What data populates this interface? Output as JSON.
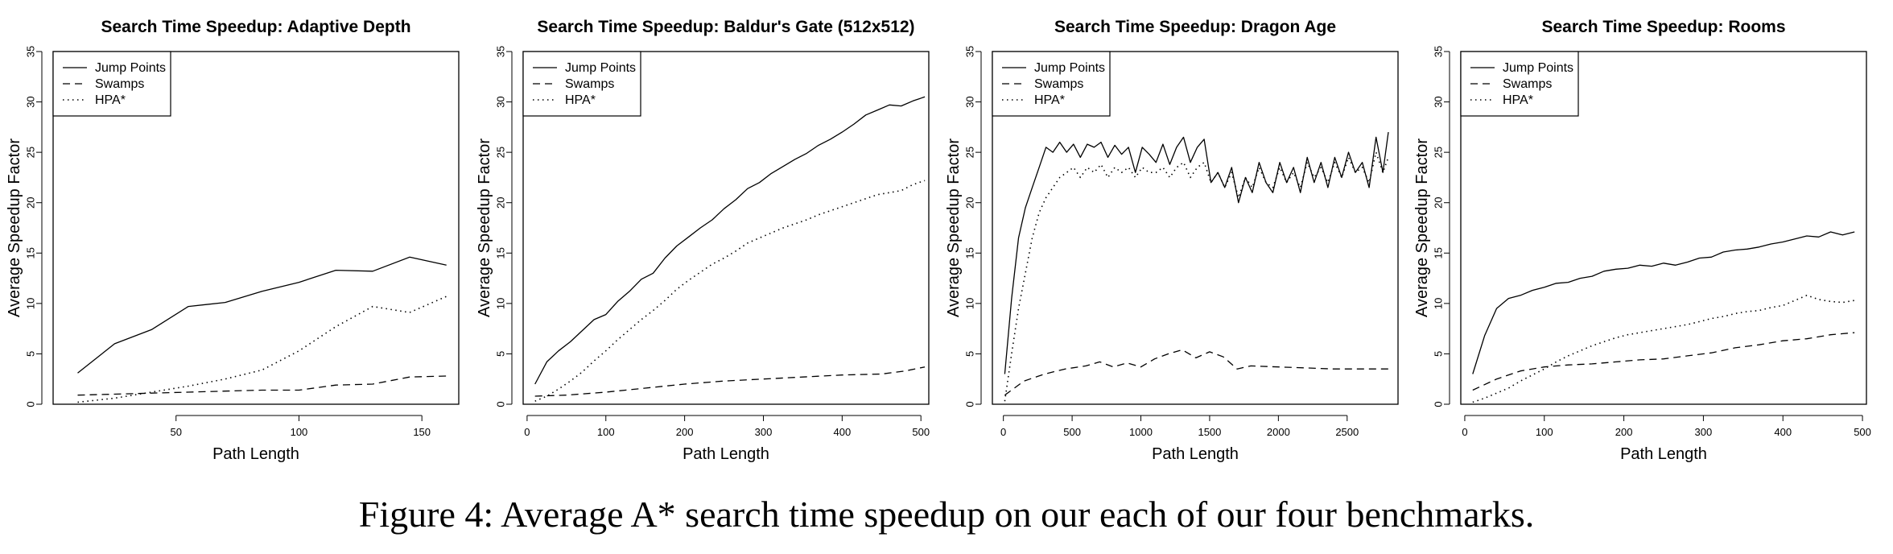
{
  "caption": "Figure 4: Average A* search time speedup on our each of our four benchmarks.",
  "chart_data": [
    {
      "type": "line",
      "title": "Search Time Speedup: Adaptive Depth",
      "xlabel": "Path Length",
      "ylabel": "Average Speedup Factor",
      "xlim": [
        0,
        165
      ],
      "ylim": [
        0,
        35
      ],
      "xticks": [
        50,
        100,
        150
      ],
      "yticks": [
        0,
        5,
        10,
        15,
        20,
        25,
        30,
        35
      ],
      "legend": "top-left",
      "grid": false,
      "series": [
        {
          "name": "Jump Points",
          "style": "solid",
          "x": [
            10,
            25,
            40,
            55,
            70,
            85,
            100,
            115,
            130,
            145,
            160
          ],
          "y": [
            3.1,
            6.0,
            7.4,
            9.7,
            10.1,
            11.2,
            12.1,
            13.3,
            13.2,
            14.6,
            13.8
          ]
        },
        {
          "name": "Swamps",
          "style": "dashed",
          "x": [
            10,
            25,
            40,
            55,
            70,
            85,
            100,
            115,
            130,
            145,
            160
          ],
          "y": [
            0.9,
            1.0,
            1.1,
            1.2,
            1.3,
            1.4,
            1.4,
            1.9,
            2.0,
            2.7,
            2.8
          ]
        },
        {
          "name": "HPA*",
          "style": "dotted",
          "x": [
            10,
            25,
            40,
            55,
            70,
            85,
            100,
            115,
            130,
            145,
            160
          ],
          "y": [
            0.2,
            0.6,
            1.2,
            1.8,
            2.5,
            3.4,
            5.3,
            7.7,
            9.7,
            9.1,
            10.7
          ]
        }
      ]
    },
    {
      "type": "line",
      "title": "Search Time Speedup: Baldur's Gate (512x512)",
      "xlabel": "Path Length",
      "ylabel": "Average Speedup Factor",
      "xlim": [
        -5,
        510
      ],
      "ylim": [
        0,
        35
      ],
      "xticks": [
        0,
        100,
        200,
        300,
        400,
        500
      ],
      "yticks": [
        0,
        5,
        10,
        15,
        20,
        25,
        30,
        35
      ],
      "legend": "top-left",
      "grid": false,
      "series": [
        {
          "name": "Jump Points",
          "style": "solid",
          "x": [
            10,
            25,
            40,
            55,
            70,
            85,
            100,
            115,
            130,
            145,
            160,
            175,
            190,
            205,
            220,
            235,
            250,
            265,
            280,
            295,
            310,
            325,
            340,
            355,
            370,
            385,
            400,
            415,
            430,
            445,
            460,
            475,
            490,
            505
          ],
          "y": [
            2.0,
            4.2,
            5.3,
            6.2,
            7.3,
            8.4,
            8.9,
            10.2,
            11.2,
            12.4,
            13.0,
            14.5,
            15.7,
            16.6,
            17.5,
            18.3,
            19.4,
            20.3,
            21.4,
            22.0,
            22.9,
            23.6,
            24.3,
            24.9,
            25.7,
            26.3,
            27.0,
            27.8,
            28.7,
            29.2,
            29.7,
            29.6,
            30.1,
            30.5
          ]
        },
        {
          "name": "Swamps",
          "style": "dashed",
          "x": [
            10,
            50,
            100,
            150,
            200,
            250,
            300,
            350,
            400,
            450,
            480,
            505
          ],
          "y": [
            0.8,
            0.9,
            1.2,
            1.6,
            2.0,
            2.3,
            2.5,
            2.7,
            2.9,
            3.0,
            3.3,
            3.7
          ]
        },
        {
          "name": "HPA*",
          "style": "dotted",
          "x": [
            10,
            25,
            40,
            55,
            70,
            85,
            100,
            115,
            130,
            145,
            160,
            175,
            190,
            205,
            220,
            235,
            250,
            265,
            280,
            295,
            310,
            325,
            340,
            355,
            370,
            385,
            400,
            415,
            430,
            445,
            460,
            475,
            490,
            505
          ],
          "y": [
            0.3,
            0.8,
            1.5,
            2.3,
            3.2,
            4.3,
            5.3,
            6.4,
            7.4,
            8.4,
            9.3,
            10.3,
            11.4,
            12.3,
            13.1,
            13.9,
            14.5,
            15.2,
            16.0,
            16.5,
            17.0,
            17.5,
            17.9,
            18.3,
            18.8,
            19.2,
            19.6,
            20.0,
            20.4,
            20.8,
            21.0,
            21.2,
            21.8,
            22.2
          ]
        }
      ]
    },
    {
      "type": "line",
      "title": "Search Time Speedup: Dragon Age",
      "xlabel": "Path Length",
      "ylabel": "Average Speedup Factor",
      "xlim": [
        -80,
        2870
      ],
      "ylim": [
        0,
        35
      ],
      "xticks": [
        0,
        500,
        1000,
        1500,
        2000,
        2500
      ],
      "yticks": [
        0,
        5,
        10,
        15,
        20,
        25,
        30,
        35
      ],
      "legend": "top-left",
      "grid": false,
      "series": [
        {
          "name": "Jump Points",
          "style": "solid",
          "x": [
            10,
            60,
            110,
            160,
            210,
            260,
            310,
            360,
            410,
            460,
            510,
            560,
            610,
            660,
            710,
            760,
            810,
            860,
            910,
            960,
            1010,
            1060,
            1110,
            1160,
            1210,
            1260,
            1310,
            1360,
            1410,
            1460,
            1510,
            1560,
            1610,
            1660,
            1710,
            1760,
            1810,
            1860,
            1910,
            1960,
            2010,
            2060,
            2110,
            2160,
            2210,
            2260,
            2310,
            2360,
            2410,
            2460,
            2510,
            2560,
            2610,
            2660,
            2710,
            2760,
            2800
          ],
          "y": [
            3.0,
            10.5,
            16.5,
            19.5,
            21.5,
            23.5,
            25.5,
            25.0,
            26.0,
            25.0,
            25.8,
            24.5,
            25.8,
            25.5,
            26.0,
            24.5,
            25.7,
            24.8,
            25.5,
            23.0,
            25.5,
            24.8,
            24.0,
            25.8,
            23.8,
            25.5,
            26.5,
            24.0,
            25.5,
            26.3,
            22.0,
            23.0,
            21.5,
            23.5,
            20.0,
            22.5,
            21.0,
            24.0,
            22.0,
            21.0,
            24.0,
            22.0,
            23.5,
            21.0,
            24.5,
            22.0,
            24.0,
            21.5,
            24.5,
            22.5,
            25.0,
            23.0,
            24.0,
            21.5,
            26.5,
            23.0,
            27.0
          ]
        },
        {
          "name": "Swamps",
          "style": "dashed",
          "x": [
            10,
            150,
            300,
            450,
            600,
            700,
            800,
            900,
            1000,
            1100,
            1200,
            1300,
            1400,
            1500,
            1600,
            1700,
            1800,
            2000,
            2200,
            2400,
            2600,
            2800
          ],
          "y": [
            0.9,
            2.3,
            3.0,
            3.5,
            3.8,
            4.2,
            3.7,
            4.1,
            3.7,
            4.5,
            5.0,
            5.4,
            4.6,
            5.2,
            4.7,
            3.5,
            3.8,
            3.7,
            3.6,
            3.5,
            3.5,
            3.5
          ]
        },
        {
          "name": "HPA*",
          "style": "dotted",
          "x": [
            10,
            60,
            110,
            160,
            210,
            260,
            310,
            360,
            410,
            460,
            510,
            560,
            610,
            660,
            710,
            760,
            810,
            860,
            910,
            960,
            1010,
            1060,
            1110,
            1160,
            1210,
            1260,
            1310,
            1360,
            1410,
            1460,
            1510,
            1560,
            1610,
            1660,
            1710,
            1760,
            1810,
            1860,
            1910,
            1960,
            2010,
            2060,
            2110,
            2160,
            2210,
            2260,
            2310,
            2360,
            2410,
            2460,
            2510,
            2560,
            2610,
            2660,
            2710,
            2760,
            2800
          ],
          "y": [
            0.3,
            5.0,
            9.5,
            13.0,
            16.5,
            19.0,
            20.5,
            21.5,
            22.5,
            23.0,
            23.5,
            22.5,
            23.5,
            23.0,
            23.8,
            22.5,
            23.5,
            23.0,
            23.5,
            22.5,
            23.5,
            23.0,
            23.0,
            23.5,
            22.5,
            23.5,
            24.0,
            22.5,
            23.5,
            24.0,
            22.0,
            23.0,
            21.5,
            23.0,
            20.5,
            22.5,
            21.5,
            23.5,
            22.0,
            21.5,
            23.5,
            22.0,
            23.0,
            21.5,
            24.0,
            22.5,
            23.5,
            22.0,
            24.0,
            22.5,
            24.5,
            23.0,
            23.5,
            22.0,
            25.0,
            23.0,
            24.5
          ]
        }
      ]
    },
    {
      "type": "line",
      "title": "Search Time Speedup: Rooms",
      "xlabel": "Path Length",
      "ylabel": "Average Speedup Factor",
      "xlim": [
        -5,
        505
      ],
      "ylim": [
        0,
        35
      ],
      "xticks": [
        0,
        100,
        200,
        300,
        400,
        500
      ],
      "yticks": [
        0,
        5,
        10,
        15,
        20,
        25,
        30,
        35
      ],
      "legend": "top-left",
      "grid": false,
      "series": [
        {
          "name": "Jump Points",
          "style": "solid",
          "x": [
            10,
            25,
            40,
            55,
            70,
            85,
            100,
            115,
            130,
            145,
            160,
            175,
            190,
            205,
            220,
            235,
            250,
            265,
            280,
            295,
            310,
            325,
            340,
            355,
            370,
            385,
            400,
            415,
            430,
            445,
            460,
            475,
            490
          ],
          "y": [
            3.0,
            6.8,
            9.5,
            10.5,
            10.8,
            11.3,
            11.6,
            12.0,
            12.1,
            12.5,
            12.7,
            13.2,
            13.4,
            13.5,
            13.8,
            13.7,
            14.0,
            13.8,
            14.1,
            14.5,
            14.6,
            15.1,
            15.3,
            15.4,
            15.6,
            15.9,
            16.1,
            16.4,
            16.7,
            16.6,
            17.1,
            16.8,
            17.1
          ]
        },
        {
          "name": "Swamps",
          "style": "dashed",
          "x": [
            10,
            40,
            70,
            100,
            130,
            160,
            190,
            220,
            250,
            280,
            310,
            340,
            370,
            400,
            430,
            460,
            490
          ],
          "y": [
            1.4,
            2.5,
            3.3,
            3.7,
            3.9,
            4.0,
            4.2,
            4.4,
            4.5,
            4.8,
            5.1,
            5.6,
            5.9,
            6.3,
            6.5,
            6.9,
            7.1
          ]
        },
        {
          "name": "HPA*",
          "style": "dotted",
          "x": [
            10,
            25,
            40,
            55,
            70,
            85,
            100,
            115,
            130,
            145,
            160,
            175,
            190,
            205,
            220,
            235,
            250,
            265,
            280,
            295,
            310,
            325,
            340,
            355,
            370,
            385,
            400,
            415,
            430,
            445,
            460,
            475,
            490
          ],
          "y": [
            0.2,
            0.6,
            1.1,
            1.6,
            2.3,
            2.9,
            3.5,
            4.2,
            4.8,
            5.3,
            5.8,
            6.2,
            6.6,
            6.9,
            7.1,
            7.3,
            7.5,
            7.7,
            7.9,
            8.2,
            8.5,
            8.7,
            9.0,
            9.2,
            9.3,
            9.6,
            9.8,
            10.3,
            10.8,
            10.4,
            10.2,
            10.1,
            10.3
          ]
        }
      ]
    }
  ]
}
